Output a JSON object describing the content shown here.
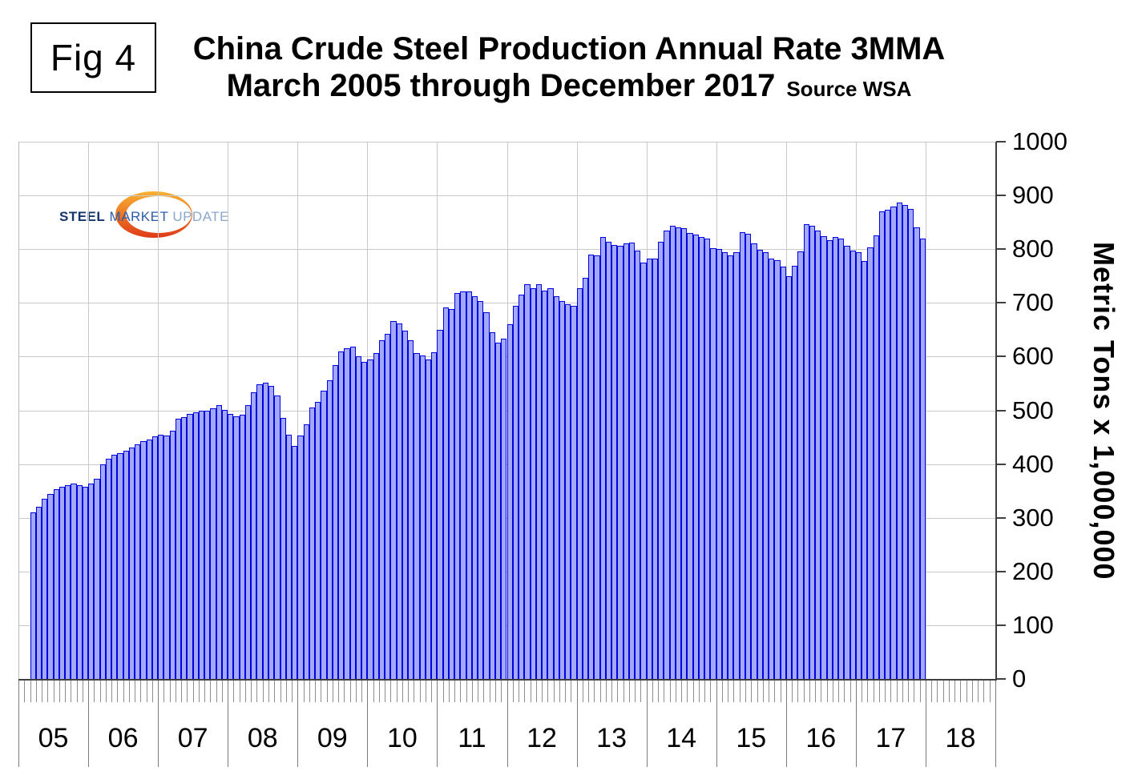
{
  "figure_label": "Fig 4",
  "title": {
    "line1": "China Crude Steel Production Annual Rate 3MMA",
    "line2": "March 2005 through December 2017",
    "source": "Source WSA"
  },
  "logo": {
    "word1": "STEEL",
    "word2": "MARKET",
    "word3": "UPDATE"
  },
  "y_axis": {
    "title": "Metric Tons x 1,000,000"
  },
  "colors": {
    "bar_fill": "#a4a8fb",
    "bar_border": "#0000dd",
    "gridline": "#c9c9c9",
    "axis": "#3f3f3f",
    "logo_swoosh_top": "#f9b233",
    "logo_swoosh_bottom": "#df3a17"
  },
  "chart_data": {
    "type": "bar",
    "title": "China Crude Steel Production Annual Rate 3MMA",
    "subtitle": "March 2005 through December 2017",
    "source": "WSA",
    "ylabel": "Metric Tons x 1,000,000",
    "ylim": [
      0,
      1000
    ],
    "y_ticks": [
      0,
      100,
      200,
      300,
      400,
      500,
      600,
      700,
      800,
      900,
      1000
    ],
    "x_year_labels": [
      "05",
      "06",
      "07",
      "08",
      "09",
      "10",
      "11",
      "12",
      "13",
      "14",
      "15",
      "16",
      "17",
      "18"
    ],
    "frequency": "monthly",
    "start": "2005-03",
    "end": "2017-12",
    "grid": true,
    "values": [
      310,
      320,
      336,
      345,
      353,
      358,
      361,
      364,
      361,
      357,
      364,
      372,
      400,
      410,
      417,
      420,
      425,
      430,
      436,
      442,
      446,
      451,
      454,
      453,
      462,
      484,
      487,
      494,
      496,
      499,
      500,
      504,
      509,
      501,
      494,
      489,
      492,
      509,
      534,
      548,
      551,
      546,
      528,
      486,
      455,
      433,
      453,
      474,
      505,
      516,
      537,
      556,
      584,
      609,
      616,
      619,
      600,
      590,
      595,
      606,
      631,
      642,
      666,
      661,
      649,
      630,
      607,
      602,
      594,
      608,
      650,
      692,
      689,
      718,
      722,
      721,
      712,
      703,
      683,
      646,
      626,
      633,
      660,
      695,
      715,
      735,
      728,
      734,
      723,
      728,
      713,
      703,
      698,
      695,
      728,
      746,
      790,
      789,
      822,
      813,
      808,
      806,
      810,
      812,
      797,
      775,
      782,
      783,
      813,
      835,
      843,
      841,
      839,
      830,
      827,
      823,
      820,
      802,
      801,
      794,
      789,
      795,
      832,
      828,
      811,
      799,
      794,
      782,
      780,
      767,
      750,
      769,
      796,
      846,
      844,
      834,
      824,
      817,
      822,
      820,
      806,
      797,
      794,
      778,
      803,
      826,
      870,
      874,
      879,
      887,
      883,
      875,
      841,
      819
    ]
  }
}
